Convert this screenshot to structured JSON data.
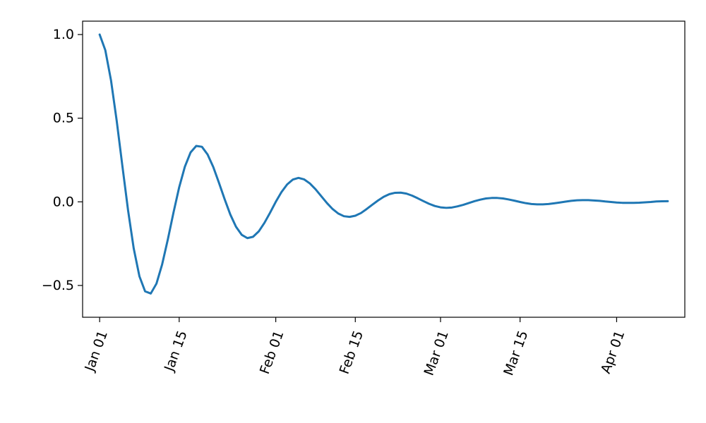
{
  "chart_data": {
    "type": "line",
    "title": "",
    "xlabel": "",
    "ylabel": "",
    "x_axis": {
      "kind": "date",
      "range": [
        "2023-12-29",
        "2024-04-13"
      ],
      "ticks": [
        {
          "date": "2024-01-01",
          "label": "Jan 01"
        },
        {
          "date": "2024-01-15",
          "label": "Jan 15"
        },
        {
          "date": "2024-02-01",
          "label": "Feb 01"
        },
        {
          "date": "2024-02-15",
          "label": "Feb 15"
        },
        {
          "date": "2024-03-01",
          "label": "Mar 01"
        },
        {
          "date": "2024-03-15",
          "label": "Mar 15"
        },
        {
          "date": "2024-04-01",
          "label": "Apr 01"
        }
      ]
    },
    "y_axis": {
      "range": [
        -0.69,
        1.08
      ],
      "ticks": [
        {
          "value": 1.0,
          "label": "1.0"
        },
        {
          "value": 0.5,
          "label": "0.5"
        },
        {
          "value": 0.0,
          "label": "0.0"
        },
        {
          "value": -0.5,
          "label": "−0.5"
        }
      ]
    },
    "grid": false,
    "legend": "none",
    "series": [
      {
        "color": "#1f77b4",
        "x": [
          "2024-01-01",
          "2024-01-02",
          "2024-01-03",
          "2024-01-04",
          "2024-01-05",
          "2024-01-06",
          "2024-01-07",
          "2024-01-08",
          "2024-01-09",
          "2024-01-10",
          "2024-01-11",
          "2024-01-12",
          "2024-01-13",
          "2024-01-14",
          "2024-01-15",
          "2024-01-16",
          "2024-01-17",
          "2024-01-18",
          "2024-01-19",
          "2024-01-20",
          "2024-01-21",
          "2024-01-22",
          "2024-01-23",
          "2024-01-24",
          "2024-01-25",
          "2024-01-26",
          "2024-01-27",
          "2024-01-28",
          "2024-01-29",
          "2024-01-30",
          "2024-01-31",
          "2024-02-01",
          "2024-02-02",
          "2024-02-03",
          "2024-02-04",
          "2024-02-05",
          "2024-02-06",
          "2024-02-07",
          "2024-02-08",
          "2024-02-09",
          "2024-02-10",
          "2024-02-11",
          "2024-02-12",
          "2024-02-13",
          "2024-02-14",
          "2024-02-15",
          "2024-02-16",
          "2024-02-17",
          "2024-02-18",
          "2024-02-19",
          "2024-02-20",
          "2024-02-21",
          "2024-02-22",
          "2024-02-23",
          "2024-02-24",
          "2024-02-25",
          "2024-02-26",
          "2024-02-27",
          "2024-02-28",
          "2024-02-29",
          "2024-03-01",
          "2024-03-02",
          "2024-03-03",
          "2024-03-04",
          "2024-03-05",
          "2024-03-06",
          "2024-03-07",
          "2024-03-08",
          "2024-03-09",
          "2024-03-10",
          "2024-03-11",
          "2024-03-12",
          "2024-03-13",
          "2024-03-14",
          "2024-03-15",
          "2024-03-16",
          "2024-03-17",
          "2024-03-18",
          "2024-03-19",
          "2024-03-20",
          "2024-03-21",
          "2024-03-22",
          "2024-03-23",
          "2024-03-24",
          "2024-03-25",
          "2024-03-26",
          "2024-03-27",
          "2024-03-28",
          "2024-03-29",
          "2024-03-30",
          "2024-03-31",
          "2024-04-01",
          "2024-04-02",
          "2024-04-03",
          "2024-04-04",
          "2024-04-05",
          "2024-04-06",
          "2024-04-07",
          "2024-04-08",
          "2024-04-09",
          "2024-04-10"
        ],
        "y": [
          1.0,
          0.906,
          0.726,
          0.485,
          0.215,
          -0.05,
          -0.279,
          -0.445,
          -0.535,
          -0.548,
          -0.489,
          -0.374,
          -0.225,
          -0.064,
          0.087,
          0.21,
          0.295,
          0.334,
          0.329,
          0.283,
          0.208,
          0.114,
          0.016,
          -0.076,
          -0.149,
          -0.197,
          -0.217,
          -0.209,
          -0.177,
          -0.126,
          -0.065,
          0.0,
          0.058,
          0.104,
          0.133,
          0.143,
          0.134,
          0.11,
          0.075,
          0.034,
          -0.007,
          -0.043,
          -0.07,
          -0.086,
          -0.09,
          -0.083,
          -0.067,
          -0.043,
          -0.017,
          0.008,
          0.03,
          0.046,
          0.054,
          0.055,
          0.049,
          0.037,
          0.021,
          0.004,
          -0.012,
          -0.025,
          -0.033,
          -0.036,
          -0.034,
          -0.027,
          -0.018,
          -0.007,
          0.004,
          0.013,
          0.02,
          0.023,
          0.023,
          0.02,
          0.014,
          0.007,
          -0.001,
          -0.008,
          -0.013,
          -0.015,
          -0.015,
          -0.013,
          -0.009,
          -0.004,
          0.001,
          0.006,
          0.009,
          0.01,
          0.01,
          0.008,
          0.006,
          0.002,
          -0.001,
          -0.004,
          -0.006,
          -0.006,
          -0.006,
          -0.005,
          -0.003,
          -0.001,
          0.002,
          0.003,
          0.004
        ]
      }
    ]
  }
}
